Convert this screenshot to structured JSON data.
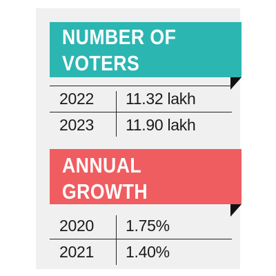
{
  "colors": {
    "card_background": "#f0f0f0",
    "voters_banner": "#2bb6b2",
    "growth_banner": "#ef5d60",
    "fold_shadow": "#111111"
  },
  "voters": {
    "title_line1": "NUMBER OF",
    "title_line2": "VOTERS",
    "rows": [
      {
        "year": "2022",
        "value": "11.32 lakh"
      },
      {
        "year": "2023",
        "value": "11.90 lakh"
      }
    ]
  },
  "growth": {
    "title_line1": "ANNUAL",
    "title_line2": "GROWTH",
    "rows": [
      {
        "year": "2020",
        "value": "1.75%"
      },
      {
        "year": "2021",
        "value": "1.40%"
      }
    ]
  }
}
